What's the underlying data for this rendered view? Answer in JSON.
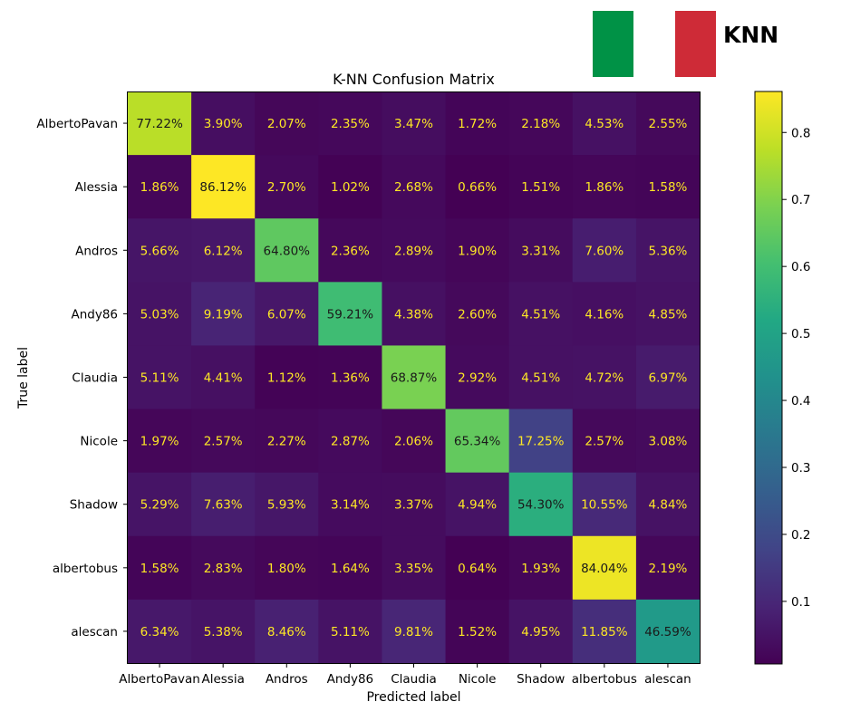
{
  "header": {
    "badge_text": "KNN",
    "flag_colors": [
      "#009246",
      "#ffffff",
      "#ce2b37"
    ]
  },
  "chart_data": {
    "type": "heatmap",
    "title": "K-NN Confusion Matrix",
    "xlabel": "Predicted label",
    "ylabel": "True label",
    "x_categories": [
      "AlbertoPavan",
      "Alessia",
      "Andros",
      "Andy86",
      "Claudia",
      "Nicole",
      "Shadow",
      "albertobus",
      "alescan"
    ],
    "y_categories": [
      "AlbertoPavan",
      "Alessia",
      "Andros",
      "Andy86",
      "Claudia",
      "Nicole",
      "Shadow",
      "albertobus",
      "alescan"
    ],
    "values": [
      [
        77.22,
        3.9,
        2.07,
        2.35,
        3.47,
        1.72,
        2.18,
        4.53,
        2.55
      ],
      [
        1.86,
        86.12,
        2.7,
        1.02,
        2.68,
        0.66,
        1.51,
        1.86,
        1.58
      ],
      [
        5.66,
        6.12,
        64.8,
        2.36,
        2.89,
        1.9,
        3.31,
        7.6,
        5.36
      ],
      [
        5.03,
        9.19,
        6.07,
        59.21,
        4.38,
        2.6,
        4.51,
        4.16,
        4.85
      ],
      [
        5.11,
        4.41,
        1.12,
        1.36,
        68.87,
        2.92,
        4.51,
        4.72,
        6.97
      ],
      [
        1.97,
        2.57,
        2.27,
        2.87,
        2.06,
        65.34,
        17.25,
        2.57,
        3.08
      ],
      [
        5.29,
        7.63,
        5.93,
        3.14,
        3.37,
        4.94,
        54.3,
        10.55,
        4.84
      ],
      [
        1.58,
        2.83,
        1.8,
        1.64,
        3.35,
        0.64,
        1.93,
        84.04,
        2.19
      ],
      [
        6.34,
        5.38,
        8.46,
        5.11,
        9.81,
        1.52,
        4.95,
        11.85,
        46.59
      ]
    ],
    "value_format": "percent_2dp",
    "colormap": "viridis",
    "colorbar": {
      "range": [
        0.0066,
        0.8612
      ],
      "tick_values": [
        0.1,
        0.2,
        0.3,
        0.4,
        0.5,
        0.6,
        0.7,
        0.8
      ],
      "tick_labels": [
        "0.1",
        "0.2",
        "0.3",
        "0.4",
        "0.5",
        "0.6",
        "0.7",
        "0.8"
      ]
    },
    "grid": false,
    "text_color_light": "#fde725",
    "text_color_dark": "#1a1a1a"
  }
}
